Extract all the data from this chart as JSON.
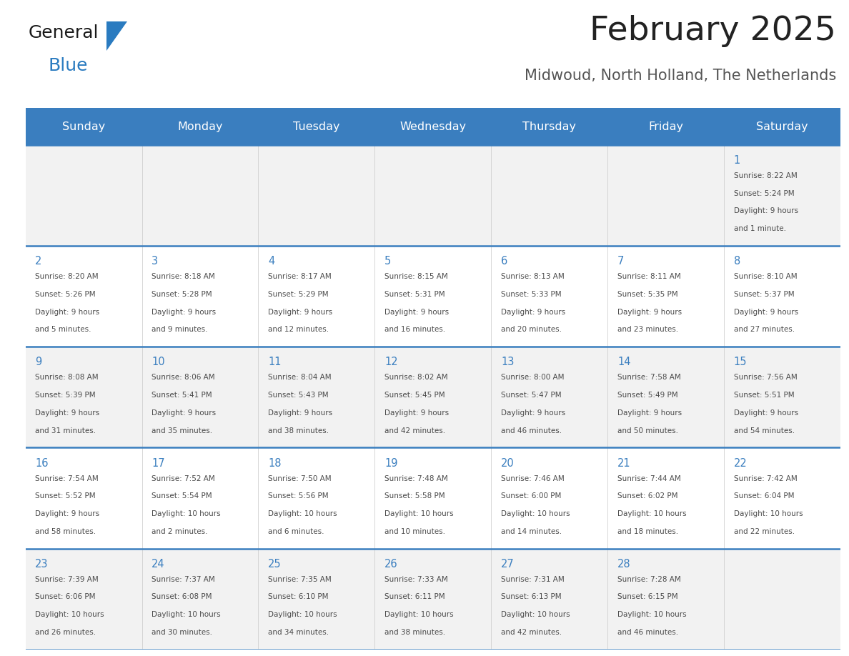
{
  "title": "February 2025",
  "subtitle": "Midwoud, North Holland, The Netherlands",
  "days_of_week": [
    "Sunday",
    "Monday",
    "Tuesday",
    "Wednesday",
    "Thursday",
    "Friday",
    "Saturday"
  ],
  "header_bg": "#3a7ebf",
  "header_text_color": "#ffffff",
  "cell_bg_light": "#f2f2f2",
  "cell_bg_white": "#ffffff",
  "border_color": "#3a7ebf",
  "day_number_color": "#3a7ebf",
  "text_color": "#4a4a4a",
  "title_color": "#222222",
  "subtitle_color": "#555555",
  "logo_general_color": "#1a1a1a",
  "logo_blue_color": "#2a7bc0",
  "calendar": [
    [
      {
        "day": null
      },
      {
        "day": null
      },
      {
        "day": null
      },
      {
        "day": null
      },
      {
        "day": null
      },
      {
        "day": null
      },
      {
        "day": 1,
        "sunrise": "8:22 AM",
        "sunset": "5:24 PM",
        "daylight_h": "9 hours",
        "daylight_m": "and 1 minute."
      }
    ],
    [
      {
        "day": 2,
        "sunrise": "8:20 AM",
        "sunset": "5:26 PM",
        "daylight_h": "9 hours",
        "daylight_m": "and 5 minutes."
      },
      {
        "day": 3,
        "sunrise": "8:18 AM",
        "sunset": "5:28 PM",
        "daylight_h": "9 hours",
        "daylight_m": "and 9 minutes."
      },
      {
        "day": 4,
        "sunrise": "8:17 AM",
        "sunset": "5:29 PM",
        "daylight_h": "9 hours",
        "daylight_m": "and 12 minutes."
      },
      {
        "day": 5,
        "sunrise": "8:15 AM",
        "sunset": "5:31 PM",
        "daylight_h": "9 hours",
        "daylight_m": "and 16 minutes."
      },
      {
        "day": 6,
        "sunrise": "8:13 AM",
        "sunset": "5:33 PM",
        "daylight_h": "9 hours",
        "daylight_m": "and 20 minutes."
      },
      {
        "day": 7,
        "sunrise": "8:11 AM",
        "sunset": "5:35 PM",
        "daylight_h": "9 hours",
        "daylight_m": "and 23 minutes."
      },
      {
        "day": 8,
        "sunrise": "8:10 AM",
        "sunset": "5:37 PM",
        "daylight_h": "9 hours",
        "daylight_m": "and 27 minutes."
      }
    ],
    [
      {
        "day": 9,
        "sunrise": "8:08 AM",
        "sunset": "5:39 PM",
        "daylight_h": "9 hours",
        "daylight_m": "and 31 minutes."
      },
      {
        "day": 10,
        "sunrise": "8:06 AM",
        "sunset": "5:41 PM",
        "daylight_h": "9 hours",
        "daylight_m": "and 35 minutes."
      },
      {
        "day": 11,
        "sunrise": "8:04 AM",
        "sunset": "5:43 PM",
        "daylight_h": "9 hours",
        "daylight_m": "and 38 minutes."
      },
      {
        "day": 12,
        "sunrise": "8:02 AM",
        "sunset": "5:45 PM",
        "daylight_h": "9 hours",
        "daylight_m": "and 42 minutes."
      },
      {
        "day": 13,
        "sunrise": "8:00 AM",
        "sunset": "5:47 PM",
        "daylight_h": "9 hours",
        "daylight_m": "and 46 minutes."
      },
      {
        "day": 14,
        "sunrise": "7:58 AM",
        "sunset": "5:49 PM",
        "daylight_h": "9 hours",
        "daylight_m": "and 50 minutes."
      },
      {
        "day": 15,
        "sunrise": "7:56 AM",
        "sunset": "5:51 PM",
        "daylight_h": "9 hours",
        "daylight_m": "and 54 minutes."
      }
    ],
    [
      {
        "day": 16,
        "sunrise": "7:54 AM",
        "sunset": "5:52 PM",
        "daylight_h": "9 hours",
        "daylight_m": "and 58 minutes."
      },
      {
        "day": 17,
        "sunrise": "7:52 AM",
        "sunset": "5:54 PM",
        "daylight_h": "10 hours",
        "daylight_m": "and 2 minutes."
      },
      {
        "day": 18,
        "sunrise": "7:50 AM",
        "sunset": "5:56 PM",
        "daylight_h": "10 hours",
        "daylight_m": "and 6 minutes."
      },
      {
        "day": 19,
        "sunrise": "7:48 AM",
        "sunset": "5:58 PM",
        "daylight_h": "10 hours",
        "daylight_m": "and 10 minutes."
      },
      {
        "day": 20,
        "sunrise": "7:46 AM",
        "sunset": "6:00 PM",
        "daylight_h": "10 hours",
        "daylight_m": "and 14 minutes."
      },
      {
        "day": 21,
        "sunrise": "7:44 AM",
        "sunset": "6:02 PM",
        "daylight_h": "10 hours",
        "daylight_m": "and 18 minutes."
      },
      {
        "day": 22,
        "sunrise": "7:42 AM",
        "sunset": "6:04 PM",
        "daylight_h": "10 hours",
        "daylight_m": "and 22 minutes."
      }
    ],
    [
      {
        "day": 23,
        "sunrise": "7:39 AM",
        "sunset": "6:06 PM",
        "daylight_h": "10 hours",
        "daylight_m": "and 26 minutes."
      },
      {
        "day": 24,
        "sunrise": "7:37 AM",
        "sunset": "6:08 PM",
        "daylight_h": "10 hours",
        "daylight_m": "and 30 minutes."
      },
      {
        "day": 25,
        "sunrise": "7:35 AM",
        "sunset": "6:10 PM",
        "daylight_h": "10 hours",
        "daylight_m": "and 34 minutes."
      },
      {
        "day": 26,
        "sunrise": "7:33 AM",
        "sunset": "6:11 PM",
        "daylight_h": "10 hours",
        "daylight_m": "and 38 minutes."
      },
      {
        "day": 27,
        "sunrise": "7:31 AM",
        "sunset": "6:13 PM",
        "daylight_h": "10 hours",
        "daylight_m": "and 42 minutes."
      },
      {
        "day": 28,
        "sunrise": "7:28 AM",
        "sunset": "6:15 PM",
        "daylight_h": "10 hours",
        "daylight_m": "and 46 minutes."
      },
      {
        "day": null
      }
    ]
  ]
}
